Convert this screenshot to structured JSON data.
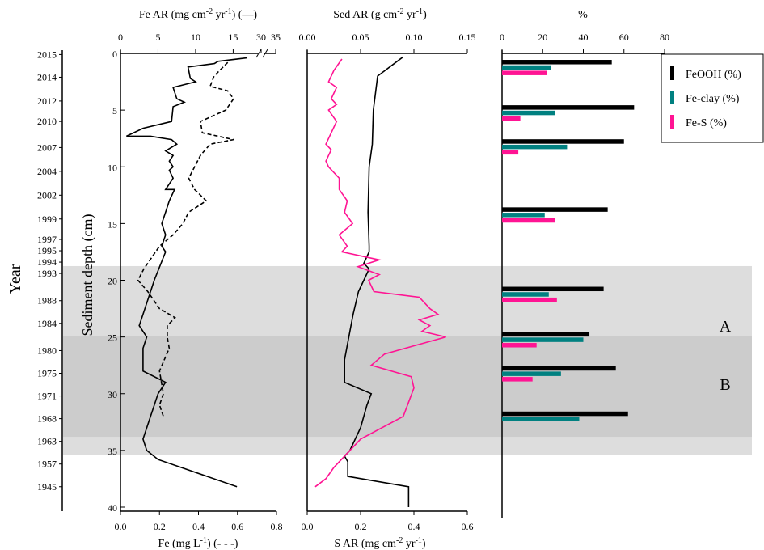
{
  "chart_data": [
    {
      "type": "line",
      "panel": "fe",
      "title": "Fe AR (mg cm⁻² yr⁻¹) (—)",
      "title_parts": [
        "Fe AR (mg cm",
        "-2",
        " yr",
        "-1",
        ") (—)"
      ],
      "xlabel": "Fe (mg L⁻¹) (- - -)",
      "xlabel_parts": [
        "Fe (mg L",
        "-1",
        ") (- - -)"
      ],
      "ylabel": "Sediment depth (cm)",
      "ylim": [
        0,
        40
      ],
      "y_ticks": [
        "0",
        "5",
        "10",
        "15",
        "20",
        "25",
        "30",
        "35",
        "40"
      ],
      "top_axis": {
        "range": [
          0,
          17
        ],
        "ticks": [
          "0",
          "5",
          "10",
          "15"
        ],
        "break_ticks": [
          "30",
          "35"
        ]
      },
      "bottom_axis": {
        "range": [
          0,
          0.8
        ],
        "ticks": [
          "0.0",
          "0.2",
          "0.4",
          "0.6",
          "0.8"
        ]
      },
      "series": [
        {
          "style": "solid",
          "color": "#000000",
          "axis": "top",
          "points": [
            [
              16.8,
              0.4
            ],
            [
              13,
              0.7
            ],
            [
              12.5,
              0.9
            ],
            [
              9,
              1.2
            ],
            [
              9.3,
              2.2
            ],
            [
              10,
              2.5
            ],
            [
              7,
              3
            ],
            [
              7.5,
              4
            ],
            [
              8.5,
              4.3
            ],
            [
              7,
              4.7
            ],
            [
              6.8,
              6
            ],
            [
              3,
              6.6
            ],
            [
              0.8,
              7.3
            ],
            [
              4,
              7.3
            ],
            [
              6.8,
              7.6
            ],
            [
              7.5,
              8
            ],
            [
              6,
              8.6
            ],
            [
              7,
              9
            ],
            [
              6.5,
              9.5
            ],
            [
              7,
              10
            ],
            [
              6.5,
              10.3
            ],
            [
              7,
              11
            ],
            [
              6,
              12
            ],
            [
              7.2,
              12
            ],
            [
              6.5,
              13
            ],
            [
              6,
              14
            ],
            [
              5.5,
              15
            ],
            [
              6,
              16
            ],
            [
              5.5,
              17
            ],
            [
              6,
              17.5
            ],
            [
              4.5,
              20
            ],
            [
              4,
              21
            ],
            [
              3,
              23
            ],
            [
              2.5,
              24
            ],
            [
              3.5,
              25
            ],
            [
              3,
              26
            ],
            [
              3,
              28
            ],
            [
              6,
              29
            ],
            [
              5,
              30
            ],
            [
              4,
              32
            ],
            [
              3,
              34
            ],
            [
              3.5,
              35
            ],
            [
              5,
              35.8
            ],
            [
              15.5,
              38.2
            ]
          ]
        },
        {
          "style": "dashed",
          "color": "#000000",
          "axis": "bottom",
          "points": [
            [
              0.55,
              0.8
            ],
            [
              0.48,
              2
            ],
            [
              0.46,
              2.9
            ],
            [
              0.55,
              3.3
            ],
            [
              0.58,
              4
            ],
            [
              0.54,
              5
            ],
            [
              0.41,
              6
            ],
            [
              0.42,
              7
            ],
            [
              0.58,
              7.6
            ],
            [
              0.46,
              8
            ],
            [
              0.41,
              9
            ],
            [
              0.38,
              10
            ],
            [
              0.35,
              11
            ],
            [
              0.38,
              12
            ],
            [
              0.44,
              13
            ],
            [
              0.35,
              14
            ],
            [
              0.32,
              15
            ],
            [
              0.27,
              16
            ],
            [
              0.2,
              17
            ],
            [
              0.16,
              18
            ],
            [
              0.12,
              19
            ],
            [
              0.09,
              20
            ],
            [
              0.14,
              21
            ],
            [
              0.2,
              22.5
            ],
            [
              0.28,
              23.3
            ],
            [
              0.24,
              24
            ],
            [
              0.24,
              25
            ],
            [
              0.25,
              26
            ],
            [
              0.2,
              28
            ],
            [
              0.22,
              30
            ],
            [
              0.2,
              31
            ],
            [
              0.22,
              32
            ]
          ]
        }
      ]
    },
    {
      "type": "line",
      "panel": "sed",
      "title": "Sed AR (g cm⁻² yr⁻¹)",
      "title_parts": [
        "Sed AR (g cm",
        "-2",
        " yr",
        "-1",
        ")"
      ],
      "xlabel": "S AR (mg cm⁻² yr⁻¹)",
      "xlabel_parts": [
        "S AR (mg cm",
        "-2",
        " yr",
        "-1",
        ")"
      ],
      "ylim": [
        0,
        40
      ],
      "top_axis": {
        "range": [
          0,
          0.15
        ],
        "ticks": [
          "0.00",
          "0.05",
          "0.10",
          "0.15"
        ]
      },
      "bottom_axis": {
        "range": [
          0,
          0.6
        ],
        "ticks": [
          "0.0",
          "0.2",
          "0.4",
          "0.6"
        ]
      },
      "series": [
        {
          "name": "Sed AR",
          "color": "#000000",
          "axis": "top",
          "points": [
            [
              0.09,
              0.3
            ],
            [
              0.066,
              2
            ],
            [
              0.062,
              5
            ],
            [
              0.061,
              8
            ],
            [
              0.058,
              10
            ],
            [
              0.057,
              14
            ],
            [
              0.058,
              17
            ],
            [
              0.058,
              17.5
            ],
            [
              0.053,
              18.5
            ],
            [
              0.058,
              19
            ],
            [
              0.048,
              21
            ],
            [
              0.043,
              23
            ],
            [
              0.04,
              24.5
            ],
            [
              0.035,
              27
            ],
            [
              0.035,
              29
            ],
            [
              0.06,
              30
            ],
            [
              0.056,
              31
            ],
            [
              0.05,
              33
            ],
            [
              0.04,
              35
            ],
            [
              0.035,
              35.5
            ],
            [
              0.038,
              36
            ],
            [
              0.038,
              37.3
            ],
            [
              0.095,
              38.2
            ],
            [
              0.095,
              40
            ]
          ]
        },
        {
          "name": "S AR",
          "color": "#ff1493",
          "axis": "bottom",
          "points": [
            [
              0.13,
              0.5
            ],
            [
              0.1,
              1.5
            ],
            [
              0.08,
              2.5
            ],
            [
              0.11,
              3
            ],
            [
              0.09,
              4
            ],
            [
              0.11,
              4.5
            ],
            [
              0.08,
              5
            ],
            [
              0.11,
              6
            ],
            [
              0.07,
              8
            ],
            [
              0.09,
              8.5
            ],
            [
              0.07,
              9.5
            ],
            [
              0.08,
              10
            ],
            [
              0.12,
              11
            ],
            [
              0.12,
              12
            ],
            [
              0.15,
              13
            ],
            [
              0.14,
              14
            ],
            [
              0.17,
              15
            ],
            [
              0.12,
              16
            ],
            [
              0.15,
              17
            ],
            [
              0.13,
              17.5
            ],
            [
              0.27,
              18.2
            ],
            [
              0.19,
              18.8
            ],
            [
              0.27,
              19.5
            ],
            [
              0.23,
              20
            ],
            [
              0.25,
              21
            ],
            [
              0.42,
              21.5
            ],
            [
              0.46,
              22.5
            ],
            [
              0.49,
              23
            ],
            [
              0.42,
              23.5
            ],
            [
              0.46,
              24
            ],
            [
              0.43,
              24.5
            ],
            [
              0.52,
              25
            ],
            [
              0.29,
              26.5
            ],
            [
              0.24,
              27.5
            ],
            [
              0.39,
              28.5
            ],
            [
              0.4,
              29.5
            ],
            [
              0.36,
              32
            ],
            [
              0.2,
              34
            ],
            [
              0.16,
              35
            ],
            [
              0.1,
              36.5
            ],
            [
              0.07,
              37.5
            ],
            [
              0.03,
              38.2
            ]
          ]
        }
      ]
    },
    {
      "type": "bar",
      "panel": "pct",
      "orientation": "horizontal",
      "title": "%",
      "xlim": [
        0,
        80
      ],
      "x_ticks": [
        "0",
        "20",
        "40",
        "60",
        "80"
      ],
      "depths": [
        1,
        5,
        8,
        14,
        21,
        25,
        28,
        32
      ],
      "series": [
        {
          "name": "FeOOH (%)",
          "color": "#000000",
          "values": [
            54,
            65,
            60,
            52,
            50,
            43,
            56,
            62
          ]
        },
        {
          "name": "Fe-clay (%)",
          "color": "#008080",
          "values": [
            24,
            26,
            32,
            21,
            23,
            40,
            29,
            38
          ]
        },
        {
          "name": "Fe-S (%)",
          "color": "#ff1493",
          "values": [
            22,
            9,
            8,
            26,
            27,
            17,
            15,
            0
          ]
        }
      ],
      "legend": "top-right"
    }
  ],
  "year_axis": {
    "label": "Year",
    "years": [
      {
        "label": "2015",
        "depth": 0.1
      },
      {
        "label": "2014",
        "depth": 2.1
      },
      {
        "label": "2012",
        "depth": 4.2
      },
      {
        "label": "2010",
        "depth": 6.0
      },
      {
        "label": "2007",
        "depth": 8.3
      },
      {
        "label": "2004",
        "depth": 10.4
      },
      {
        "label": "2002",
        "depth": 12.5
      },
      {
        "label": "1999",
        "depth": 14.6
      },
      {
        "label": "1997",
        "depth": 16.4
      },
      {
        "label": "1995",
        "depth": 17.4
      },
      {
        "label": "1994",
        "depth": 18.4
      },
      {
        "label": "1993",
        "depth": 19.4
      },
      {
        "label": "1988",
        "depth": 21.8
      },
      {
        "label": "1984",
        "depth": 23.8
      },
      {
        "label": "1980",
        "depth": 26.2
      },
      {
        "label": "1975",
        "depth": 28.2
      },
      {
        "label": "1971",
        "depth": 30.2
      },
      {
        "label": "1968",
        "depth": 32.2
      },
      {
        "label": "1963",
        "depth": 34.2
      },
      {
        "label": "1957",
        "depth": 36.2
      },
      {
        "label": "1945",
        "depth": 38.2
      }
    ]
  },
  "zones": [
    {
      "label": "A",
      "from_depth": 18.75,
      "to_depth": 35.4,
      "color": "#dddddd"
    },
    {
      "label": "B",
      "from_depth": 24.9,
      "to_depth": 33.8,
      "color": "#cccccc"
    }
  ]
}
